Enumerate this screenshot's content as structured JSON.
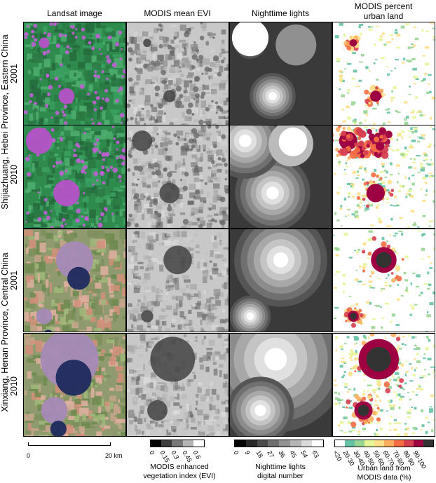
{
  "columns": {
    "landsat": "Landsat image",
    "evi": "MODIS mean EVI",
    "lights": "Nighttime lights",
    "urban_line1": "MODIS percent",
    "urban_line2": "urban land"
  },
  "rows": {
    "group1_label": "Shijiazhuang, Hebei Province, Eastern China",
    "group2_label": "Xinxiang, Henan Province, Central China",
    "year_2001": "2001",
    "year_2010": "2010"
  },
  "scalebar": {
    "start": "0",
    "end": "20 km"
  },
  "legend_evi": {
    "ticks": [
      "0",
      "0.15",
      "0.3",
      "0.45",
      "0.6"
    ],
    "colors": [
      "#000000",
      "#3c3c3c",
      "#787878",
      "#b4b4b4",
      "#ffffff"
    ],
    "title_line1": "MODIS enhanced",
    "title_line2": "vegetation index (EVI)"
  },
  "legend_lights": {
    "ticks": [
      "0",
      "9",
      "18",
      "27",
      "36",
      "45",
      "54",
      "63"
    ],
    "colors": [
      "#000000",
      "#262626",
      "#4a4a4a",
      "#6e6e6e",
      "#929292",
      "#b6b6b6",
      "#dadada",
      "#ffffff"
    ],
    "title_line1": "Nighttime lights",
    "title_line2": "digital number"
  },
  "legend_urban": {
    "ticks": [
      "<20",
      "20-30",
      "30-40",
      "40-50",
      "50-60",
      "60-70",
      "70-80",
      "80-90",
      "90-100"
    ],
    "colors": [
      "#ffffff",
      "#66c2a5",
      "#99d594",
      "#e6f598",
      "#fee08b",
      "#fdae61",
      "#f46d43",
      "#d53e4f",
      "#9e0142",
      "#333333"
    ],
    "title_line1": "Urban land from",
    "title_line2": "MODIS data (%)"
  }
}
